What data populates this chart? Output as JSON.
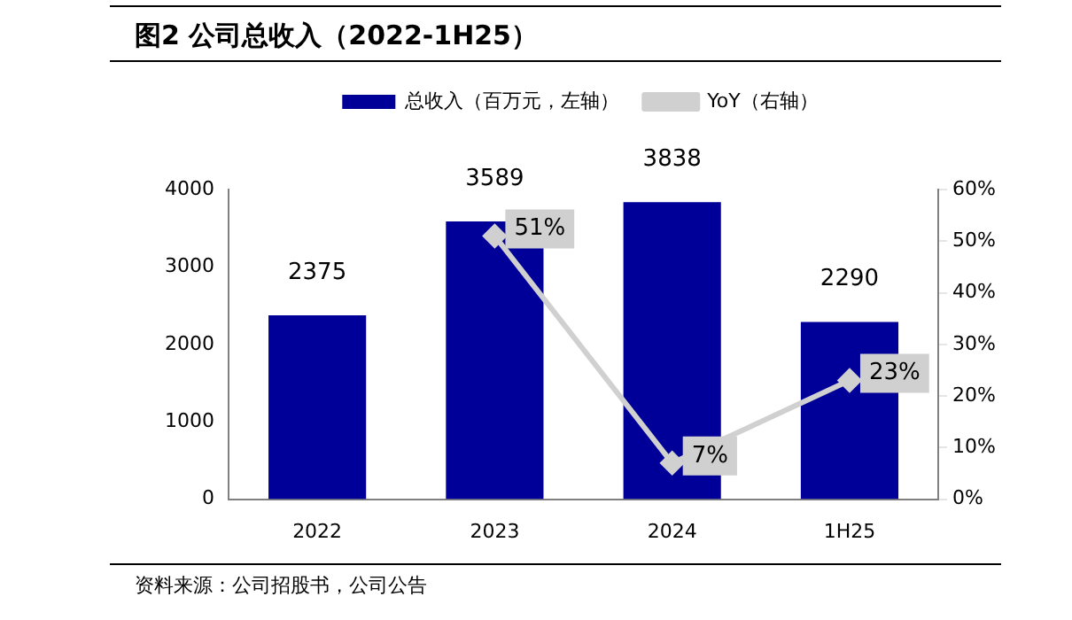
{
  "chart_data": {
    "type": "bar",
    "title": "图2 公司总收入（2022-1H25）",
    "categories": [
      "2022",
      "2023",
      "2024",
      "1H25"
    ],
    "series": [
      {
        "name": "总收入（百万元，左轴）",
        "color": "#000099",
        "values": [
          2375,
          3589,
          3838,
          2290
        ],
        "value_labels": [
          "2375",
          "3589",
          "3838",
          "2290"
        ]
      },
      {
        "name": "YoY（右轴）",
        "type": "line",
        "axis": "y2",
        "color": "#d0d0d0",
        "marker": "diamond",
        "values": [
          null,
          51,
          7,
          23
        ],
        "value_labels": [
          null,
          "51%",
          "7%",
          "23%"
        ]
      }
    ],
    "ylim": [
      0,
      4000
    ],
    "yticks": [
      0,
      1000,
      2000,
      3000,
      4000
    ],
    "y2lim": [
      0,
      60
    ],
    "y2ticks": [
      {
        "value": 0,
        "label": "0%"
      },
      {
        "value": 10,
        "label": "10%"
      },
      {
        "value": 20,
        "label": "20%"
      },
      {
        "value": 30,
        "label": "30%"
      },
      {
        "value": 40,
        "label": "40%"
      },
      {
        "value": 50,
        "label": "50%"
      },
      {
        "value": 60,
        "label": "60%"
      }
    ],
    "grid": false,
    "legend": "top",
    "annotations": [
      "资料来源：公司招股书，公司公告"
    ]
  }
}
